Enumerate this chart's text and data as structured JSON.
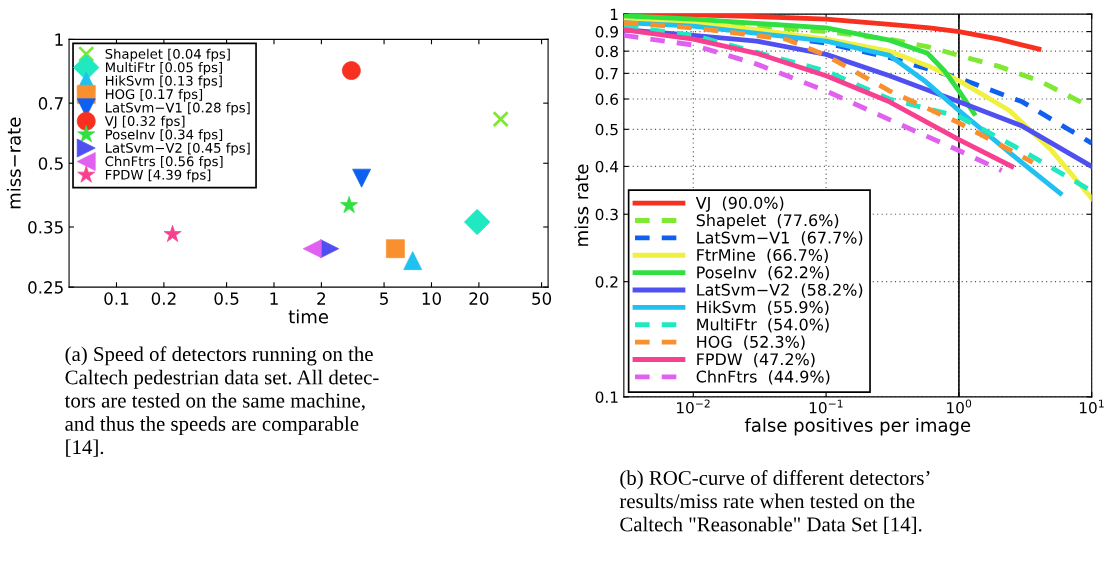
{
  "chart_data": [
    {
      "type": "scatter",
      "xlabel": "time",
      "ylabel": "miss−rate",
      "log": "xy",
      "grid": false,
      "legend": "top left",
      "xlim": [
        0.05,
        55
      ],
      "xticks": [
        0.1,
        0.2,
        0.5,
        1,
        2,
        5,
        10,
        20,
        50
      ],
      "ylim": [
        0.25,
        1
      ],
      "yticks": [
        0.25,
        0.35,
        0.5,
        0.7,
        1
      ],
      "annotations": [
        "(a) Speed of detectors running on the\nCaltech pedestrian data set. All detec-\ntors are tested on the same machine,\nand thus the speeds are comparable\n[14]."
      ],
      "series": [
        {
          "name": "Shapelet [0.04 fps]",
          "color": "#7fe832",
          "marker": "cross",
          "x": [
            27.5
          ],
          "values": [
            0.64
          ]
        },
        {
          "name": "MultiFtr [0.05 fps]",
          "color": "#20e8c0",
          "marker": "diamond",
          "x": [
            19.5
          ],
          "values": [
            0.36
          ]
        },
        {
          "name": "HikSvm [0.13 fps]",
          "color": "#20c0f0",
          "marker": "triangle",
          "x": [
            7.6
          ],
          "values": [
            0.29
          ]
        },
        {
          "name": "HOG [0.17 fps]",
          "color": "#f89030",
          "marker": "square",
          "x": [
            5.9
          ],
          "values": [
            0.31
          ]
        },
        {
          "name": "LatSvm−V1 [0.28 fps]",
          "color": "#1060f0",
          "marker": "triangle_down",
          "x": [
            3.6
          ],
          "values": [
            0.46
          ]
        },
        {
          "name": "VJ [0.32 fps]",
          "color": "#f83020",
          "marker": "circle",
          "x": [
            3.1
          ],
          "values": [
            0.84
          ]
        },
        {
          "name": "PoseInv [0.34 fps]",
          "color": "#30e040",
          "marker": "star",
          "x": [
            3.0
          ],
          "values": [
            0.395
          ]
        },
        {
          "name": "LatSvm−V2 [0.45 fps]",
          "color": "#5050f0",
          "marker": "triangle_right",
          "x": [
            2.26
          ],
          "values": [
            0.31
          ]
        },
        {
          "name": "ChnFtrs [0.56 fps]",
          "color": "#e060f0",
          "marker": "triangle_left",
          "x": [
            1.75
          ],
          "values": [
            0.31
          ]
        },
        {
          "name": "FPDW [4.39 fps]",
          "color": "#f84090",
          "marker": "star",
          "x": [
            0.227
          ],
          "values": [
            0.336
          ]
        }
      ]
    },
    {
      "type": "line",
      "xlabel": "false positives per image",
      "ylabel": "miss rate",
      "log": "xy",
      "grid": true,
      "legend": "bottom left",
      "xlim": [
        0.003,
        10
      ],
      "xticks": [
        {
          "value": 0.01,
          "label": "10$^{−2}$"
        },
        {
          "value": 0.1,
          "label": "10$^{−1}$"
        },
        {
          "value": 1,
          "label": "10$^{0}$"
        },
        {
          "value": 10,
          "label": "10$^{1}$"
        }
      ],
      "ylim": [
        0.1,
        1
      ],
      "yticks": [
        0.1,
        0.2,
        0.3,
        0.4,
        0.5,
        0.6,
        0.7,
        0.8,
        0.9,
        1
      ],
      "ref_lines": [
        {
          "axis": "x",
          "value": 1,
          "color": "#000000"
        }
      ],
      "annotations": [
        "(b) ROC-curve of different detectors’\nresults/miss rate when tested on the\nCaltech \"Reasonable\" Data Set [14]."
      ],
      "series": [
        {
          "name": "VJ  (90.0%)",
          "color": "#f83020",
          "line_style": "solid",
          "x": [
            0.003,
            0.01,
            0.03,
            0.1,
            0.3,
            0.6,
            1,
            2,
            4
          ],
          "values": [
            1.0,
            0.995,
            0.985,
            0.97,
            0.94,
            0.92,
            0.9,
            0.86,
            0.81
          ]
        },
        {
          "name": "Shapelet  (77.6%)",
          "color": "#7fe832",
          "line_style": "dashed",
          "x": [
            0.003,
            0.01,
            0.03,
            0.1,
            0.3,
            0.6,
            1,
            2,
            4,
            10
          ],
          "values": [
            0.97,
            0.95,
            0.93,
            0.9,
            0.86,
            0.82,
            0.78,
            0.73,
            0.67,
            0.57
          ]
        },
        {
          "name": "LatSvm−V1  (67.7%)",
          "color": "#1060f0",
          "line_style": "dashed",
          "x": [
            0.003,
            0.01,
            0.03,
            0.1,
            0.3,
            1,
            3,
            10
          ],
          "values": [
            0.96,
            0.93,
            0.89,
            0.84,
            0.77,
            0.68,
            0.59,
            0.46
          ]
        },
        {
          "name": "FtrMine  (66.7%)",
          "color": "#f0f040",
          "line_style": "solid",
          "x": [
            0.003,
            0.01,
            0.03,
            0.1,
            0.3,
            0.6,
            1,
            2.4,
            5,
            10
          ],
          "values": [
            0.97,
            0.95,
            0.91,
            0.86,
            0.8,
            0.73,
            0.67,
            0.56,
            0.44,
            0.33
          ]
        },
        {
          "name": "PoseInv  (62.2%)",
          "color": "#30e040",
          "line_style": "solid",
          "x": [
            0.003,
            0.01,
            0.1,
            0.3,
            0.58,
            0.78,
            1,
            1.3
          ],
          "values": [
            0.99,
            0.97,
            0.92,
            0.855,
            0.79,
            0.71,
            0.63,
            0.55
          ]
        },
        {
          "name": "LatSvm−V2  (58.2%)",
          "color": "#5050f0",
          "line_style": "solid",
          "x": [
            0.003,
            0.01,
            0.03,
            0.1,
            0.3,
            1,
            3,
            10
          ],
          "values": [
            0.91,
            0.88,
            0.85,
            0.785,
            0.69,
            0.59,
            0.51,
            0.4
          ]
        },
        {
          "name": "HikSvm  (55.9%)",
          "color": "#20c0f0",
          "line_style": "solid",
          "x": [
            0.003,
            0.01,
            0.1,
            0.3,
            0.55,
            1,
            2.5,
            5.8
          ],
          "values": [
            0.95,
            0.93,
            0.85,
            0.78,
            0.67,
            0.56,
            0.43,
            0.34
          ]
        },
        {
          "name": "MultiFtr  (54.0%)",
          "color": "#20e8c0",
          "line_style": "dashed",
          "x": [
            0.003,
            0.01,
            0.1,
            0.3,
            1,
            3,
            9.3
          ],
          "values": [
            0.93,
            0.88,
            0.71,
            0.6,
            0.54,
            0.44,
            0.35
          ]
        },
        {
          "name": "HOG  (52.3%)",
          "color": "#f89030",
          "line_style": "dashed",
          "x": [
            0.003,
            0.01,
            0.05,
            0.1,
            0.3,
            1,
            3.6
          ],
          "values": [
            0.95,
            0.92,
            0.86,
            0.78,
            0.63,
            0.52,
            0.41
          ]
        },
        {
          "name": "FPDW  (47.2%)",
          "color": "#f84090",
          "line_style": "solid",
          "x": [
            0.003,
            0.01,
            0.03,
            0.1,
            0.3,
            1,
            2.5
          ],
          "values": [
            0.91,
            0.86,
            0.79,
            0.69,
            0.59,
            0.47,
            0.4
          ]
        },
        {
          "name": "ChnFtrs  (44.9%)",
          "color": "#e060f0",
          "line_style": "dashed",
          "x": [
            0.003,
            0.01,
            0.03,
            0.1,
            0.3,
            1,
            2.1
          ],
          "values": [
            0.88,
            0.83,
            0.74,
            0.63,
            0.53,
            0.44,
            0.39
          ]
        }
      ]
    }
  ]
}
